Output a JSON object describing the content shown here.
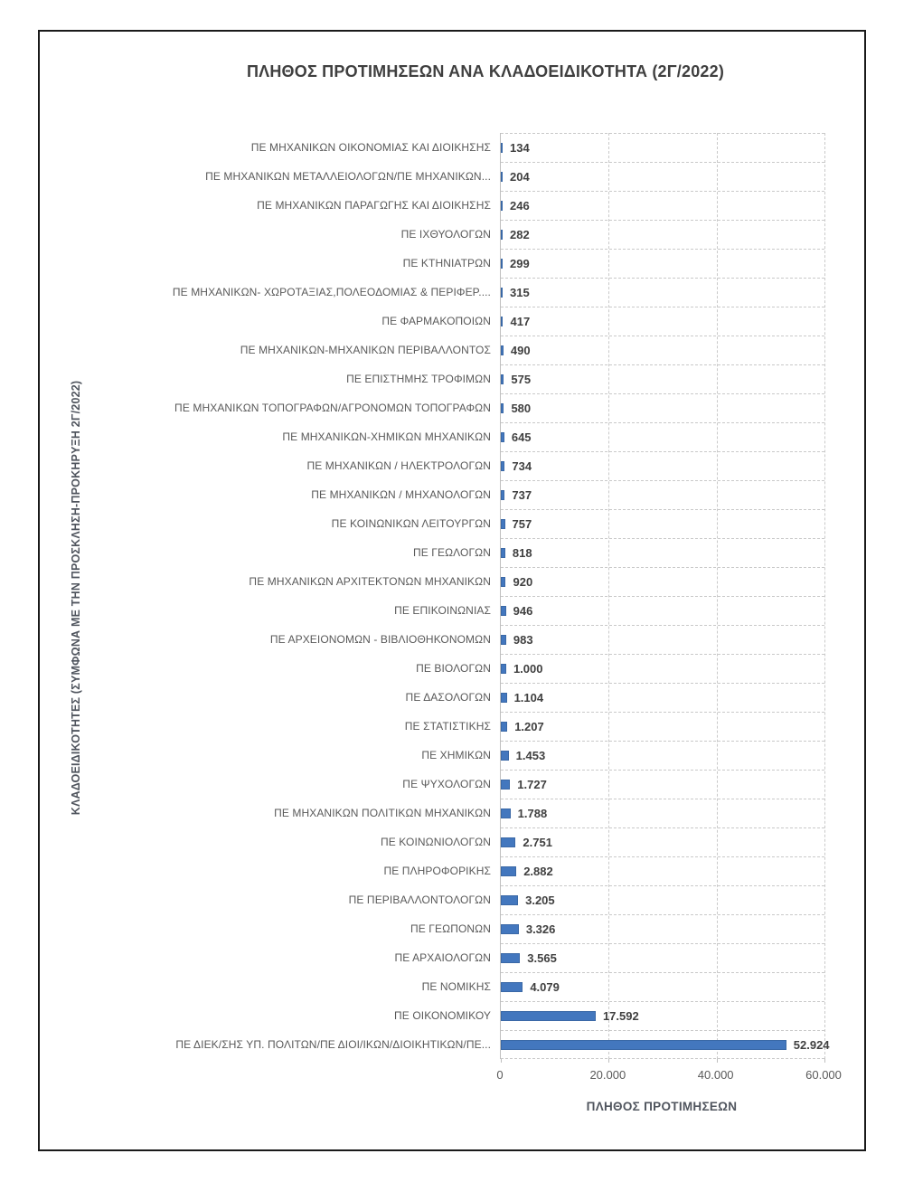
{
  "colors": {
    "frame": "#1a1a1a",
    "title_text": "#3f3f3f",
    "axis_title_text": "#50555e",
    "label_text": "#595959",
    "value_text": "#404040",
    "tick_text": "#595959",
    "grid": "#c9c9c9",
    "axis_line": "#bfbfbf",
    "bar": "#4377be",
    "bar_border": "#3a68a6"
  },
  "chart_data": {
    "type": "bar",
    "orientation": "horizontal",
    "title": "ΠΛΗΘΟΣ ΠΡΟΤΙΜΗΣΕΩΝ ΑΝΑ ΚΛΑΔΟΕΙΔΙΚΟΤΗΤΑ (2Γ/2022)",
    "xlabel": "ΠΛΗΘΟΣ ΠΡΟΤΙΜΗΣΕΩΝ",
    "ylabel": "ΚΛΑΔΟΕΙΔΙΚΟΤΗΤΕΣ (ΣΥΜΦΩΝΑ ΜΕ ΤΗΝ ΠΡΟΣΚΛΗΣΗ-ΠΡΟΚΗΡΥΞΗ 2Γ/2022)",
    "xlim": [
      0,
      60000
    ],
    "grid": "dashed",
    "legend": "none",
    "x_ticks": [
      {
        "value": 0,
        "label": "0"
      },
      {
        "value": 20000,
        "label": "20.000"
      },
      {
        "value": 40000,
        "label": "40.000"
      },
      {
        "value": 60000,
        "label": "60.000"
      }
    ],
    "categories": [
      "ΠΕ ΜΗΧΑΝΙΚΩΝ ΟΙΚΟΝΟΜΙΑΣ ΚΑΙ ΔΙΟΙΚΗΣΗΣ",
      "ΠΕ ΜΗΧΑΝΙΚΩΝ ΜΕΤΑΛΛΕΙΟΛΟΓΩΝ/ΠΕ ΜΗΧΑΝΙΚΩΝ...",
      "ΠΕ ΜΗΧΑΝΙΚΩΝ ΠΑΡΑΓΩΓΗΣ ΚΑΙ ΔΙΟΙΚΗΣΗΣ",
      "ΠΕ ΙΧΘΥΟΛΟΓΩΝ",
      "ΠΕ ΚΤΗΝΙΑΤΡΩΝ",
      "ΠΕ ΜΗΧΑΝΙΚΩΝ- ΧΩΡΟΤΑΞΙΑΣ,ΠΟΛΕΟΔΟΜΙΑΣ & ΠΕΡΙΦΕΡ....",
      "ΠΕ ΦΑΡΜΑΚΟΠΟΙΩΝ",
      "ΠΕ ΜΗΧΑΝΙΚΩΝ-ΜΗΧΑΝΙΚΩΝ ΠΕΡΙΒΑΛΛΟΝΤΟΣ",
      "ΠΕ ΕΠΙΣΤΗΜΗΣ ΤΡΟΦΙΜΩΝ",
      "ΠΕ ΜΗΧΑΝΙΚΩΝ ΤΟΠΟΓΡΑΦΩΝ/ΑΓΡΟΝΟΜΩΝ ΤΟΠΟΓΡΑΦΩΝ",
      "ΠΕ ΜΗΧΑΝΙΚΩΝ-ΧΗΜΙΚΩΝ ΜΗΧΑΝΙΚΩΝ",
      "ΠΕ ΜΗΧΑΝΙΚΩΝ / ΗΛΕΚΤΡΟΛΟΓΩΝ",
      "ΠΕ ΜΗΧΑΝΙΚΩΝ / ΜΗΧΑΝΟΛΟΓΩΝ",
      "ΠΕ ΚΟΙΝΩΝΙΚΩΝ ΛΕΙΤΟΥΡΓΩΝ",
      "ΠΕ ΓΕΩΛΟΓΩΝ",
      "ΠΕ ΜΗΧΑΝΙΚΩΝ ΑΡΧΙΤΕΚΤΟΝΩΝ ΜΗΧΑΝΙΚΩΝ",
      "ΠΕ ΕΠΙΚΟΙΝΩΝΙΑΣ",
      "ΠΕ ΑΡΧΕΙΟΝΟΜΩΝ - ΒΙΒΛΙΟΘΗΚΟΝΟΜΩΝ",
      "ΠΕ ΒΙΟΛΟΓΩΝ",
      "ΠΕ ΔΑΣΟΛΟΓΩΝ",
      "ΠΕ ΣΤΑΤΙΣΤΙΚΗΣ",
      "ΠΕ ΧΗΜΙΚΩΝ",
      "ΠΕ ΨΥΧΟΛΟΓΩΝ",
      "ΠΕ ΜΗΧΑΝΙΚΩΝ ΠΟΛΙΤΙΚΩΝ ΜΗΧΑΝΙΚΩΝ",
      "ΠΕ ΚΟΙΝΩΝΙΟΛΟΓΩΝ",
      "ΠΕ ΠΛΗΡΟΦΟΡΙΚΗΣ",
      "ΠΕ ΠΕΡΙΒΑΛΛΟΝΤΟΛΟΓΩΝ",
      "ΠΕ ΓΕΩΠΟΝΩΝ",
      "ΠΕ ΑΡΧΑΙΟΛΟΓΩΝ",
      "ΠΕ ΝΟΜΙΚΗΣ",
      "ΠΕ ΟΙΚΟΝΟΜΙΚΟΥ",
      "ΠΕ ΔΙΕΚ/ΣΗΣ ΥΠ. ΠΟΛΙΤΩΝ/ΠΕ ΔΙΟΙ/ΙΚΩΝ/ΔΙΟΙΚΗΤΙΚΩΝ/ΠΕ..."
    ],
    "values": [
      134,
      204,
      246,
      282,
      299,
      315,
      417,
      490,
      575,
      580,
      645,
      734,
      737,
      757,
      818,
      920,
      946,
      983,
      1000,
      1104,
      1207,
      1453,
      1727,
      1788,
      2751,
      2882,
      3205,
      3326,
      3565,
      4079,
      17592,
      52924
    ],
    "value_labels": [
      "134",
      "204",
      "246",
      "282",
      "299",
      "315",
      "417",
      "490",
      "575",
      "580",
      "645",
      "734",
      "737",
      "757",
      "818",
      "920",
      "946",
      "983",
      "1.000",
      "1.104",
      "1.207",
      "1.453",
      "1.727",
      "1.788",
      "2.751",
      "2.882",
      "3.205",
      "3.326",
      "3.565",
      "4.079",
      "17.592",
      "52.924"
    ]
  }
}
